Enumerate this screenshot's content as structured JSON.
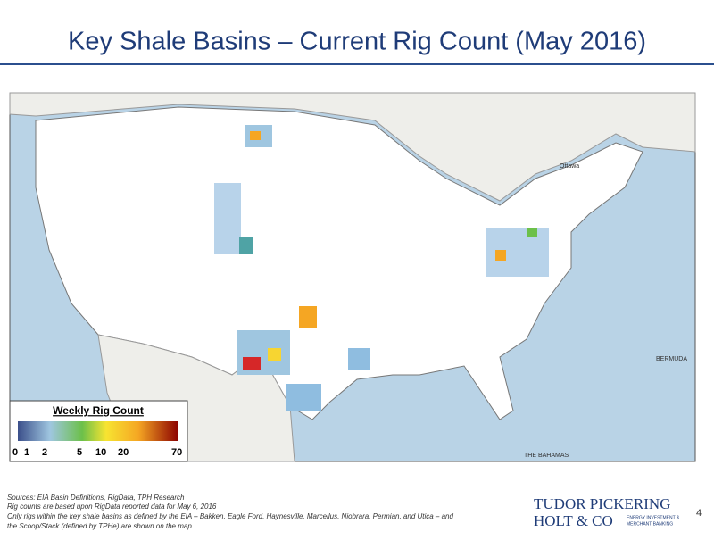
{
  "header": {
    "title": "Key Shale Basins – Current Rig Count (May 2016)"
  },
  "map": {
    "labels": [
      "Ottawa",
      "BERMUDA",
      "THE BAHAMAS"
    ]
  },
  "legend": {
    "title": "Weekly Rig Count",
    "ticks": [
      0,
      1,
      2,
      5,
      10,
      20,
      70
    ]
  },
  "footer": {
    "notes": [
      "Sources: EIA Basin Definitions, RigData, TPH Research",
      "Rig counts are  based upon RigData reported data for May 6, 2016",
      "Only rigs within the key shale basins as defined by the EIA – Bakken, Eagle Ford, Haynesville, Marcellus, Niobrara, Permian, and Utica  – and",
      "the Scoop/Stack (defined by TPHe) are shown on the map."
    ],
    "logo": {
      "line1": "TUDOR PICKERING",
      "line2": "HOLT & CO",
      "tagline1": "ENERGY INVESTMENT &",
      "tagline2": "MERCHANT BANKING"
    },
    "page": 4
  }
}
